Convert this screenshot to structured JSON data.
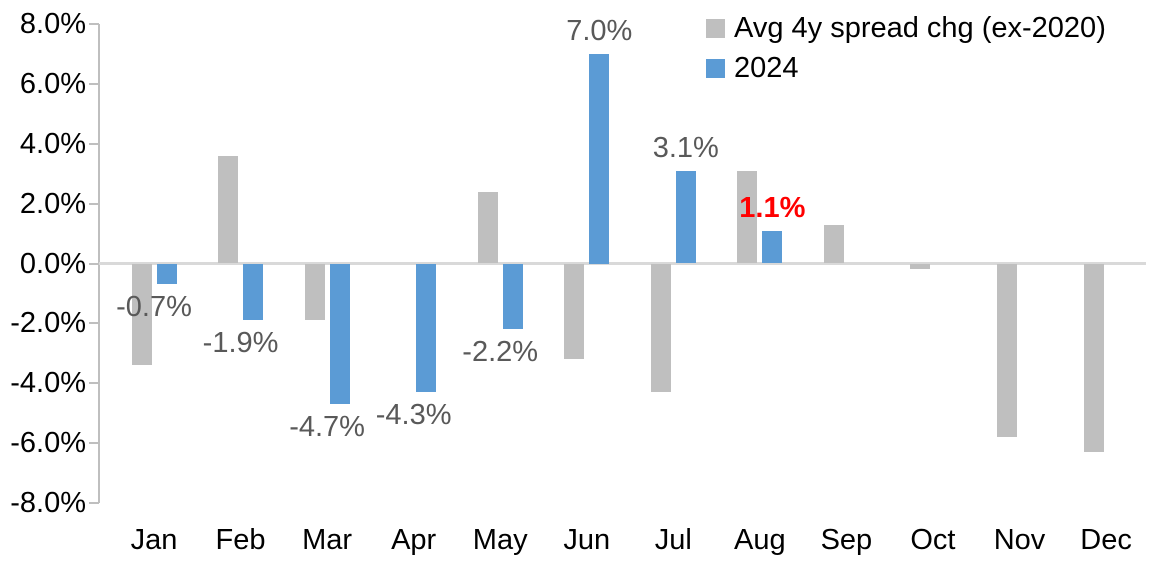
{
  "chart_data": {
    "type": "bar",
    "title": "",
    "categories": [
      "Jan",
      "Feb",
      "Mar",
      "Apr",
      "May",
      "Jun",
      "Jul",
      "Aug",
      "Sep",
      "Oct",
      "Nov",
      "Dec"
    ],
    "yticks": [
      "8.0%",
      "6.0%",
      "4.0%",
      "2.0%",
      "0.0%",
      "-2.0%",
      "-4.0%",
      "-6.0%",
      "-8.0%"
    ],
    "ylim": [
      -8,
      8
    ],
    "grid": "zero gridline only",
    "legend_position": "top-right",
    "series": [
      {
        "name": "Avg 4y spread chg (ex-2020)",
        "color": "#BFBFBF",
        "values": [
          -3.4,
          3.6,
          -1.9,
          0.0,
          2.4,
          -3.2,
          -4.3,
          3.1,
          1.3,
          -0.2,
          -5.8,
          -6.3
        ]
      },
      {
        "name": "2024",
        "color": "#5B9BD5",
        "values": [
          -0.7,
          -1.9,
          -4.7,
          -4.3,
          -2.2,
          7.0,
          3.1,
          1.1,
          null,
          null,
          null,
          null
        ]
      }
    ],
    "data_labels": [
      {
        "text": "-0.7%",
        "color": "#595959",
        "bold": false
      },
      {
        "text": "-1.9%",
        "color": "#595959",
        "bold": false
      },
      {
        "text": "-4.7%",
        "color": "#595959",
        "bold": false
      },
      {
        "text": "-4.3%",
        "color": "#595959",
        "bold": false
      },
      {
        "text": "-2.2%",
        "color": "#595959",
        "bold": false
      },
      {
        "text": "7.0%",
        "color": "#595959",
        "bold": false
      },
      {
        "text": "3.1%",
        "color": "#595959",
        "bold": false
      },
      {
        "text": "1.1%",
        "color": "#FF0000",
        "bold": true
      },
      null,
      null,
      null,
      null
    ]
  },
  "colors": {
    "background": "#FFFFFF",
    "axis_line": "#BFBFBF",
    "zero_gridline": "#D9D9D9",
    "axis_tick_label": "#000000",
    "data_label": "#595959",
    "highlight_label": "#FF0000"
  }
}
